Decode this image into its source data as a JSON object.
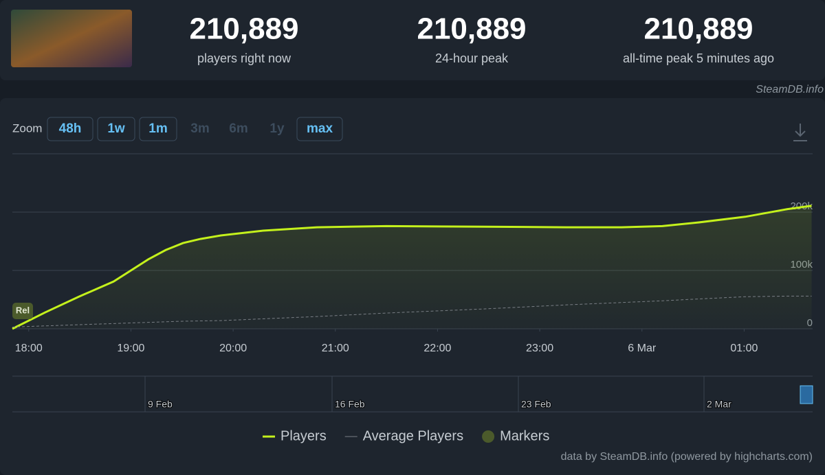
{
  "header": {
    "stats": [
      {
        "value": "210,889",
        "label": "players right now"
      },
      {
        "value": "210,889",
        "label": "24-hour peak"
      },
      {
        "value": "210,889",
        "label": "all-time peak 5 minutes ago"
      }
    ],
    "credit": "SteamDB.info"
  },
  "zoom": {
    "label": "Zoom",
    "buttons": [
      {
        "label": "48h",
        "enabled": true
      },
      {
        "label": "1w",
        "enabled": true
      },
      {
        "label": "1m",
        "enabled": true
      },
      {
        "label": "3m",
        "enabled": false
      },
      {
        "label": "6m",
        "enabled": false
      },
      {
        "label": "1y",
        "enabled": false
      },
      {
        "label": "max",
        "enabled": true
      }
    ]
  },
  "chart_data": {
    "type": "line",
    "x": [
      17.84,
      18.16,
      18.49,
      18.83,
      19.17,
      19.34,
      19.51,
      19.68,
      19.88,
      20.28,
      20.82,
      21.5,
      22.45,
      23.26,
      23.8,
      24.2,
      24.54,
      25.01,
      25.42,
      25.66
    ],
    "series": [
      {
        "name": "Players",
        "color": "#c4f11c",
        "values": [
          0,
          28000,
          55000,
          81000,
          119000,
          135000,
          147000,
          154000,
          160000,
          168000,
          174000,
          176000,
          175000,
          174000,
          174000,
          176000,
          182000,
          192000,
          205000,
          210889
        ]
      },
      {
        "name": "Average Players",
        "color": "#7a7f86",
        "dashed": true,
        "values": [
          3000,
          5000,
          7000,
          9000,
          11000,
          12000,
          13000,
          13500,
          14000,
          17000,
          21000,
          27000,
          34000,
          41000,
          45000,
          48000,
          51000,
          55000,
          56000,
          56000
        ]
      }
    ],
    "markers": {
      "name": "Markers",
      "color": "#4b5a2b",
      "points": [
        {
          "x": 17.84,
          "label": "Rel"
        }
      ]
    },
    "xlim": [
      17.84,
      25.67
    ],
    "xticks": [
      {
        "value": 18,
        "label": "18:00"
      },
      {
        "value": 19,
        "label": "19:00"
      },
      {
        "value": 20,
        "label": "20:00"
      },
      {
        "value": 21,
        "label": "21:00"
      },
      {
        "value": 22,
        "label": "22:00"
      },
      {
        "value": 23,
        "label": "23:00"
      },
      {
        "value": 24,
        "label": "6 Mar"
      },
      {
        "value": 25,
        "label": "01:00"
      }
    ],
    "ylim": [
      0,
      300000
    ],
    "yticks": [
      0,
      {
        "value": 100000,
        "label": "100k"
      },
      {
        "value": 200000,
        "label": "200k"
      }
    ],
    "grid": true,
    "navigator_labels": [
      "9 Feb",
      "16 Feb",
      "23 Feb",
      "2 Mar"
    ]
  },
  "footer": "data by SteamDB.info (powered by highcharts.com)"
}
